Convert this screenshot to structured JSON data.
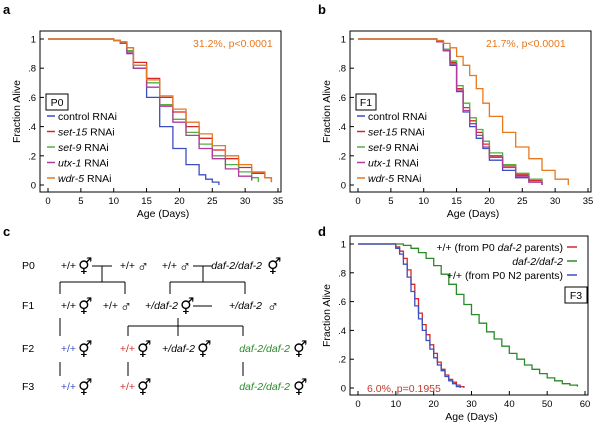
{
  "panels": {
    "a": {
      "label": "a",
      "box": "P0",
      "stat": "31.2%, p<0.0001"
    },
    "b": {
      "label": "b",
      "box": "F1",
      "stat": "21.7%, p<0.0001"
    },
    "c": {
      "label": "c"
    },
    "d": {
      "label": "d",
      "box": "F3",
      "stat": "6.0%, p=0.1955"
    }
  },
  "legend_ab": {
    "prefixes": [
      "control",
      "set-15",
      "set-9",
      "utx-1",
      "wdr-5"
    ],
    "suffix": " RNAi"
  },
  "legend_d": [
    {
      "pre": "+/+ (from P0 ",
      "ital": "daf-2",
      "post": " parents)"
    },
    {
      "pre": "",
      "ital": "daf-2/daf-2",
      "post": ""
    },
    {
      "pre": "+/+ (from P0 N2 parents)",
      "ital": "",
      "post": ""
    }
  ],
  "cross": {
    "generations": [
      "P0",
      "F1",
      "F2",
      "F3"
    ],
    "wt": "+/+",
    "het": "+/daf-2",
    "hom": "daf-2/daf-2",
    "male": "♂",
    "female": "♀",
    "herm": "⚥"
  },
  "colors": {
    "control": "#3a4fc1",
    "set15": "#d62828",
    "set9": "#52b043",
    "utx1": "#b03a9e",
    "wdr5": "#e8781e",
    "stat_orange": "#e8781e",
    "stat_red": "#c0392b",
    "blue": "#3a4fc1",
    "red": "#d62828",
    "green": "#2a8a2a"
  },
  "chart_data": [
    {
      "type": "line",
      "title": "P0",
      "xlabel": "Age (Days)",
      "ylabel": "Fraction Alive",
      "xlim": [
        0,
        35
      ],
      "ylim": [
        0,
        1
      ],
      "xticks": [
        0,
        5,
        10,
        15,
        20,
        25,
        30,
        35
      ],
      "yticks": [
        0,
        0.2,
        0.4,
        0.6,
        0.8,
        1
      ],
      "ytick_labels": [
        "0",
        ".2",
        ".4",
        ".6",
        ".8",
        "1"
      ],
      "series": [
        {
          "name": "control RNAi",
          "color": "#3a4fc1",
          "x": [
            0,
            8,
            10,
            11,
            12,
            13,
            15,
            17,
            19,
            21,
            23,
            24,
            25,
            26
          ],
          "y": [
            1,
            1,
            0.99,
            0.97,
            0.9,
            0.8,
            0.6,
            0.4,
            0.25,
            0.14,
            0.07,
            0.04,
            0.02,
            0
          ]
        },
        {
          "name": "set-15 RNAi",
          "color": "#d62828",
          "x": [
            0,
            8,
            10,
            11,
            12,
            13,
            15,
            17,
            19,
            21,
            23,
            25,
            27,
            29,
            31,
            33,
            34
          ],
          "y": [
            1,
            1,
            0.99,
            0.98,
            0.94,
            0.84,
            0.73,
            0.6,
            0.5,
            0.4,
            0.32,
            0.24,
            0.18,
            0.12,
            0.08,
            0.05,
            0.02
          ]
        },
        {
          "name": "set-9 RNAi",
          "color": "#52b043",
          "x": [
            0,
            8,
            10,
            11,
            12,
            13,
            15,
            17,
            19,
            21,
            23,
            25,
            27,
            29,
            31,
            32
          ],
          "y": [
            1,
            1,
            0.99,
            0.97,
            0.92,
            0.82,
            0.7,
            0.55,
            0.45,
            0.36,
            0.28,
            0.2,
            0.14,
            0.09,
            0.05,
            0.02
          ]
        },
        {
          "name": "utx-1 RNAi",
          "color": "#b03a9e",
          "x": [
            0,
            8,
            10,
            11,
            12,
            13,
            15,
            17,
            19,
            21,
            23,
            25,
            27,
            29,
            31
          ],
          "y": [
            1,
            1,
            0.99,
            0.97,
            0.91,
            0.8,
            0.67,
            0.54,
            0.43,
            0.34,
            0.25,
            0.18,
            0.11,
            0.06,
            0.03
          ]
        },
        {
          "name": "wdr-5 RNAi",
          "color": "#e8781e",
          "x": [
            0,
            8,
            10,
            11,
            12,
            13,
            15,
            17,
            19,
            21,
            23,
            25,
            27,
            29,
            31,
            33,
            34
          ],
          "y": [
            1,
            1,
            0.99,
            0.98,
            0.94,
            0.82,
            0.72,
            0.61,
            0.52,
            0.43,
            0.35,
            0.27,
            0.2,
            0.14,
            0.09,
            0.05,
            0.02
          ]
        }
      ]
    },
    {
      "type": "line",
      "title": "F1",
      "xlabel": "Age (Days)",
      "ylabel": "Fraction Alive",
      "xlim": [
        0,
        35
      ],
      "ylim": [
        0,
        1
      ],
      "xticks": [
        0,
        5,
        10,
        15,
        20,
        25,
        30,
        35
      ],
      "yticks": [
        0,
        0.2,
        0.4,
        0.6,
        0.8,
        1
      ],
      "ytick_labels": [
        "0",
        ".2",
        ".4",
        ".6",
        ".8",
        "1"
      ],
      "series": [
        {
          "name": "control RNAi",
          "color": "#3a4fc1",
          "x": [
            0,
            10,
            12,
            13,
            14,
            15,
            16,
            17,
            18,
            19,
            20,
            22,
            24,
            26,
            28
          ],
          "y": [
            1,
            1,
            0.98,
            0.92,
            0.82,
            0.64,
            0.5,
            0.4,
            0.32,
            0.25,
            0.17,
            0.1,
            0.05,
            0.02,
            0
          ]
        },
        {
          "name": "set-15 RNAi",
          "color": "#d62828",
          "x": [
            0,
            10,
            12,
            13,
            14,
            15,
            16,
            17,
            18,
            19,
            20,
            22,
            24,
            26,
            28
          ],
          "y": [
            1,
            1,
            0.98,
            0.93,
            0.84,
            0.66,
            0.53,
            0.44,
            0.36,
            0.28,
            0.2,
            0.13,
            0.07,
            0.03,
            0
          ]
        },
        {
          "name": "set-9 RNAi",
          "color": "#52b043",
          "x": [
            0,
            10,
            12,
            13,
            14,
            15,
            16,
            17,
            18,
            19,
            20,
            22,
            24,
            26,
            28
          ],
          "y": [
            1,
            1,
            0.98,
            0.93,
            0.85,
            0.68,
            0.56,
            0.46,
            0.38,
            0.3,
            0.22,
            0.14,
            0.08,
            0.04,
            0.01
          ]
        },
        {
          "name": "utx-1 RNAi",
          "color": "#b03a9e",
          "x": [
            0,
            10,
            12,
            13,
            14,
            15,
            16,
            17,
            18,
            19,
            20,
            22,
            24,
            26,
            28
          ],
          "y": [
            1,
            1,
            0.98,
            0.92,
            0.83,
            0.65,
            0.51,
            0.42,
            0.34,
            0.26,
            0.19,
            0.12,
            0.06,
            0.02,
            0
          ]
        },
        {
          "name": "wdr-5 RNAi",
          "color": "#e8781e",
          "x": [
            0,
            10,
            12,
            13,
            14,
            15,
            16,
            17,
            18,
            19,
            20,
            22,
            24,
            26,
            28,
            30,
            32
          ],
          "y": [
            1,
            1,
            0.99,
            0.97,
            0.94,
            0.88,
            0.82,
            0.75,
            0.66,
            0.56,
            0.47,
            0.36,
            0.26,
            0.18,
            0.1,
            0.04,
            0
          ]
        }
      ]
    },
    {
      "type": "line",
      "title": "F3",
      "xlabel": "Age (Days)",
      "ylabel": "Fraction Alive",
      "xlim": [
        0,
        60
      ],
      "ylim": [
        0,
        1
      ],
      "xticks": [
        0,
        10,
        20,
        30,
        40,
        50,
        60
      ],
      "yticks": [
        0,
        0.2,
        0.4,
        0.6,
        0.8,
        1
      ],
      "ytick_labels": [
        "0",
        ".2",
        ".4",
        ".6",
        ".8",
        "1"
      ],
      "series": [
        {
          "name": "+/+ (from P0 daf-2 parents)",
          "color": "#d62828",
          "x": [
            0,
            8,
            10,
            11,
            12,
            13,
            14,
            15,
            16,
            17,
            18,
            19,
            20,
            21,
            22,
            23,
            24,
            25,
            26,
            27,
            28
          ],
          "y": [
            1,
            1,
            0.98,
            0.95,
            0.9,
            0.82,
            0.72,
            0.62,
            0.52,
            0.44,
            0.37,
            0.3,
            0.24,
            0.18,
            0.13,
            0.09,
            0.06,
            0.04,
            0.02,
            0.01,
            0
          ]
        },
        {
          "name": "daf-2/daf-2",
          "color": "#2a8a2a",
          "x": [
            0,
            10,
            12,
            14,
            16,
            18,
            20,
            22,
            24,
            26,
            28,
            30,
            32,
            34,
            36,
            38,
            40,
            42,
            44,
            46,
            48,
            50,
            52,
            54,
            56,
            58
          ],
          "y": [
            1,
            1,
            0.99,
            0.97,
            0.94,
            0.9,
            0.85,
            0.79,
            0.72,
            0.65,
            0.58,
            0.51,
            0.45,
            0.39,
            0.34,
            0.29,
            0.24,
            0.2,
            0.16,
            0.13,
            0.1,
            0.07,
            0.05,
            0.03,
            0.02,
            0.01
          ]
        },
        {
          "name": "+/+ (from P0 N2 parents)",
          "color": "#3a4fc1",
          "x": [
            0,
            8,
            10,
            11,
            12,
            13,
            14,
            15,
            16,
            17,
            18,
            19,
            20,
            21,
            22,
            23,
            24,
            25,
            26,
            27
          ],
          "y": [
            1,
            1,
            0.97,
            0.93,
            0.86,
            0.77,
            0.67,
            0.57,
            0.48,
            0.4,
            0.33,
            0.27,
            0.21,
            0.16,
            0.12,
            0.08,
            0.05,
            0.03,
            0.01,
            0
          ]
        }
      ]
    }
  ]
}
